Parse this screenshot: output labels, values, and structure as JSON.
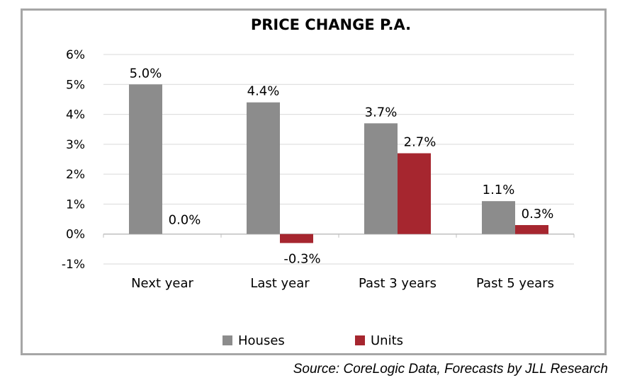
{
  "chart_data": {
    "type": "bar",
    "title": "PRICE CHANGE P.A.",
    "categories": [
      "Next year",
      "Last year",
      "Past 3 years",
      "Past 5 years"
    ],
    "series": [
      {
        "name": "Houses",
        "color": "#8c8c8c",
        "values": [
          5.0,
          4.4,
          3.7,
          1.1
        ],
        "labels": [
          "5.0%",
          "4.4%",
          "3.7%",
          "1.1%"
        ]
      },
      {
        "name": "Units",
        "color": "#a6262f",
        "values": [
          0.0,
          -0.3,
          2.7,
          0.3
        ],
        "labels": [
          "0.0%",
          "-0.3%",
          "2.7%",
          "0.3%"
        ]
      }
    ],
    "yticks": [
      6,
      5,
      4,
      3,
      2,
      1,
      0,
      -1
    ],
    "ytick_labels": [
      "6%",
      "5%",
      "4%",
      "3%",
      "2%",
      "1%",
      "0%",
      "-1%"
    ],
    "ylim": [
      -1,
      6
    ],
    "grid": true,
    "legend_position": "bottom",
    "xlabel": "",
    "ylabel": ""
  },
  "source": "Source: CoreLogic Data, Forecasts by JLL Research",
  "colors": {
    "gridline": "#d9d9d9",
    "frame": "#a6a6a6"
  }
}
